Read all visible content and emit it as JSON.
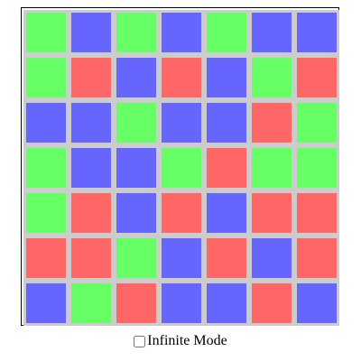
{
  "colors": {
    "R": "#ff6666",
    "G": "#66ff66",
    "B": "#6666ff",
    "tile_border": "#cccccc"
  },
  "board": {
    "rows": 7,
    "cols": 7,
    "cells": [
      [
        "G",
        "B",
        "G",
        "B",
        "G",
        "B",
        "B"
      ],
      [
        "G",
        "R",
        "B",
        "R",
        "B",
        "G",
        "R"
      ],
      [
        "B",
        "B",
        "G",
        "B",
        "B",
        "R",
        "G"
      ],
      [
        "G",
        "B",
        "B",
        "G",
        "R",
        "G",
        "G"
      ],
      [
        "G",
        "R",
        "B",
        "R",
        "B",
        "R",
        "R"
      ],
      [
        "R",
        "R",
        "G",
        "B",
        "R",
        "B",
        "R"
      ],
      [
        "B",
        "G",
        "R",
        "B",
        "B",
        "R",
        "B"
      ]
    ]
  },
  "controls": {
    "infinite_mode_label": "Infinite Mode",
    "infinite_mode_checked": false
  }
}
